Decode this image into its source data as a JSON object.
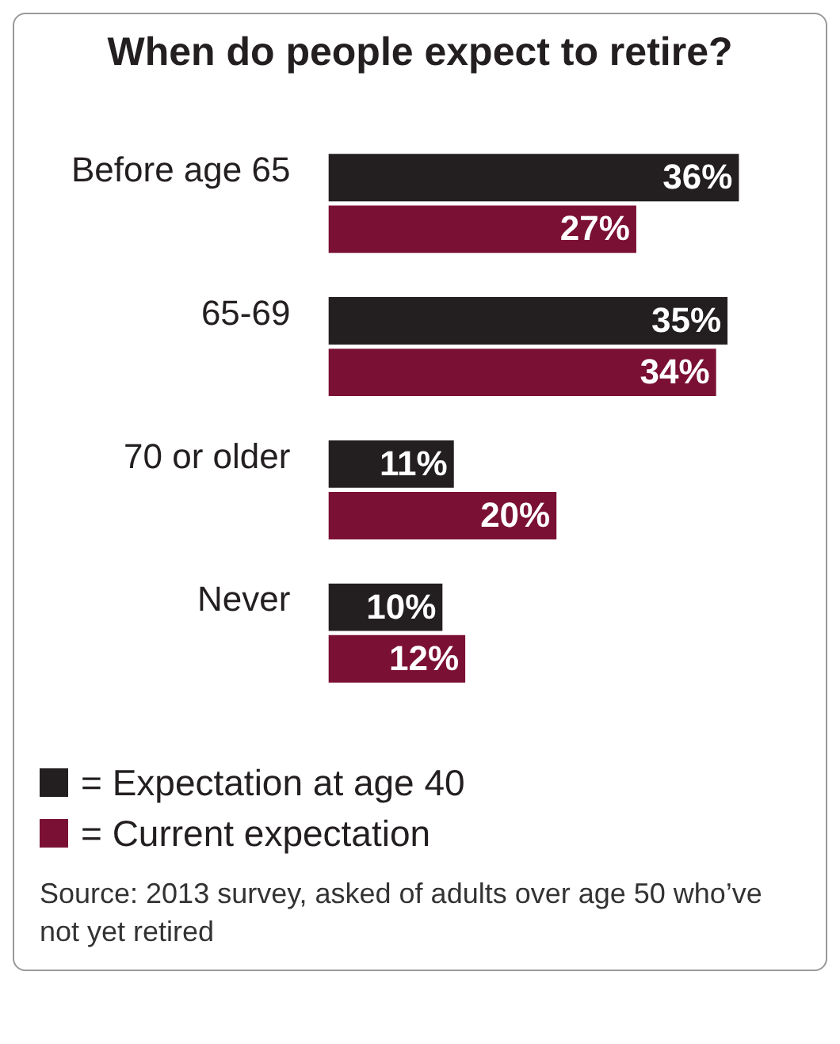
{
  "chart_data": {
    "type": "bar",
    "orientation": "horizontal",
    "title": "When do people expect to retire?",
    "categories": [
      "Before age 65",
      "65-69",
      "70 or older",
      "Never"
    ],
    "series": [
      {
        "name": "= Expectation at age 40",
        "color": "#231f20",
        "values": [
          36,
          35,
          11,
          10
        ],
        "value_labels": [
          "36%",
          "35%",
          "11%",
          "10%"
        ]
      },
      {
        "name": "= Current expectation",
        "color": "#7b1035",
        "values": [
          27,
          34,
          20,
          12
        ],
        "value_labels": [
          "27%",
          "34%",
          "20%",
          "12%"
        ]
      }
    ],
    "legend": "bottom left",
    "annotations": [
      "Source: 2013 survey, asked of adults over age 50 who’ve not yet retired"
    ]
  }
}
